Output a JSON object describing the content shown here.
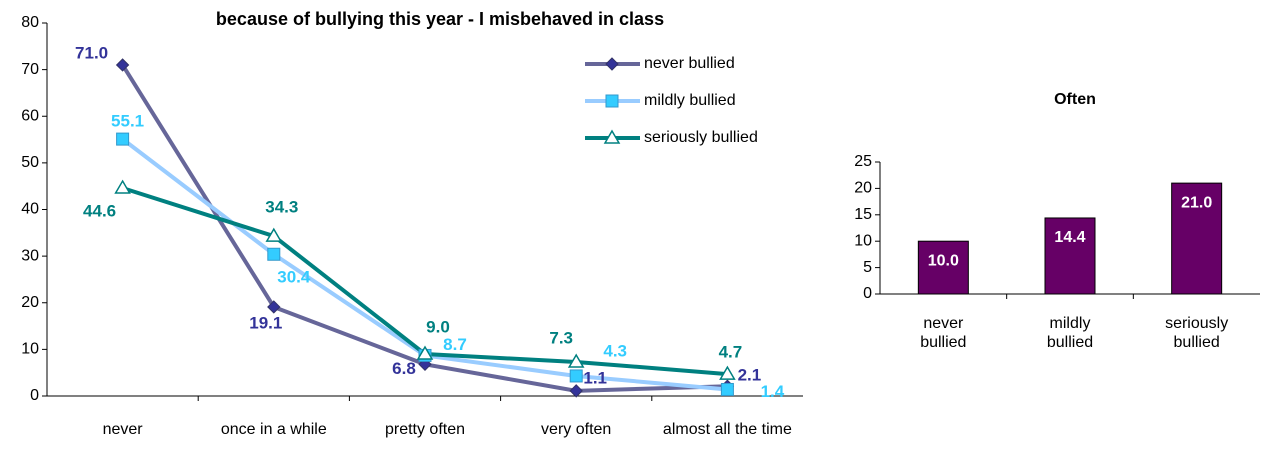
{
  "chart_data": [
    {
      "type": "line",
      "title": "because of bullying this year -  I misbehaved in class",
      "categories": [
        "never",
        "once in a while",
        "pretty often",
        "very often",
        "almost all the time"
      ],
      "series": [
        {
          "name": "never bullied",
          "color": "#666699",
          "marker_color": "#333399",
          "marker": "diamond",
          "values": [
            71.0,
            19.1,
            6.8,
            1.1,
            2.1
          ],
          "value_labels": [
            "71.0",
            "19.1",
            "6.8",
            "1.1",
            "2.1"
          ]
        },
        {
          "name": "mildly bullied",
          "color": "#99ccff",
          "marker_color": "#33ccff",
          "marker": "square",
          "values": [
            55.1,
            30.4,
            8.7,
            4.3,
            1.4
          ],
          "value_labels": [
            "55.1",
            "30.4",
            "8.7",
            "4.3",
            "1.4"
          ]
        },
        {
          "name": "seriously bullied",
          "color": "#008080",
          "marker_color": "#008080",
          "marker": "triangle",
          "values": [
            44.6,
            34.3,
            9.0,
            7.3,
            4.7
          ],
          "value_labels": [
            "44.6",
            "34.3",
            "9.0",
            "7.3",
            "4.7"
          ]
        }
      ],
      "ylim": [
        0,
        80
      ],
      "yticks": [
        0,
        10,
        20,
        30,
        40,
        50,
        60,
        70,
        80
      ],
      "legend": "top-right"
    },
    {
      "type": "bar",
      "title": "Often",
      "categories": [
        "never bullied",
        "mildly bullied",
        "seriously bullied"
      ],
      "values": [
        10.0,
        14.4,
        21.0
      ],
      "value_labels": [
        "10.0",
        "14.4",
        "21.0"
      ],
      "color": "#660066",
      "ylim": [
        0,
        25
      ],
      "yticks": [
        0,
        5,
        10,
        15,
        20,
        25
      ]
    }
  ]
}
